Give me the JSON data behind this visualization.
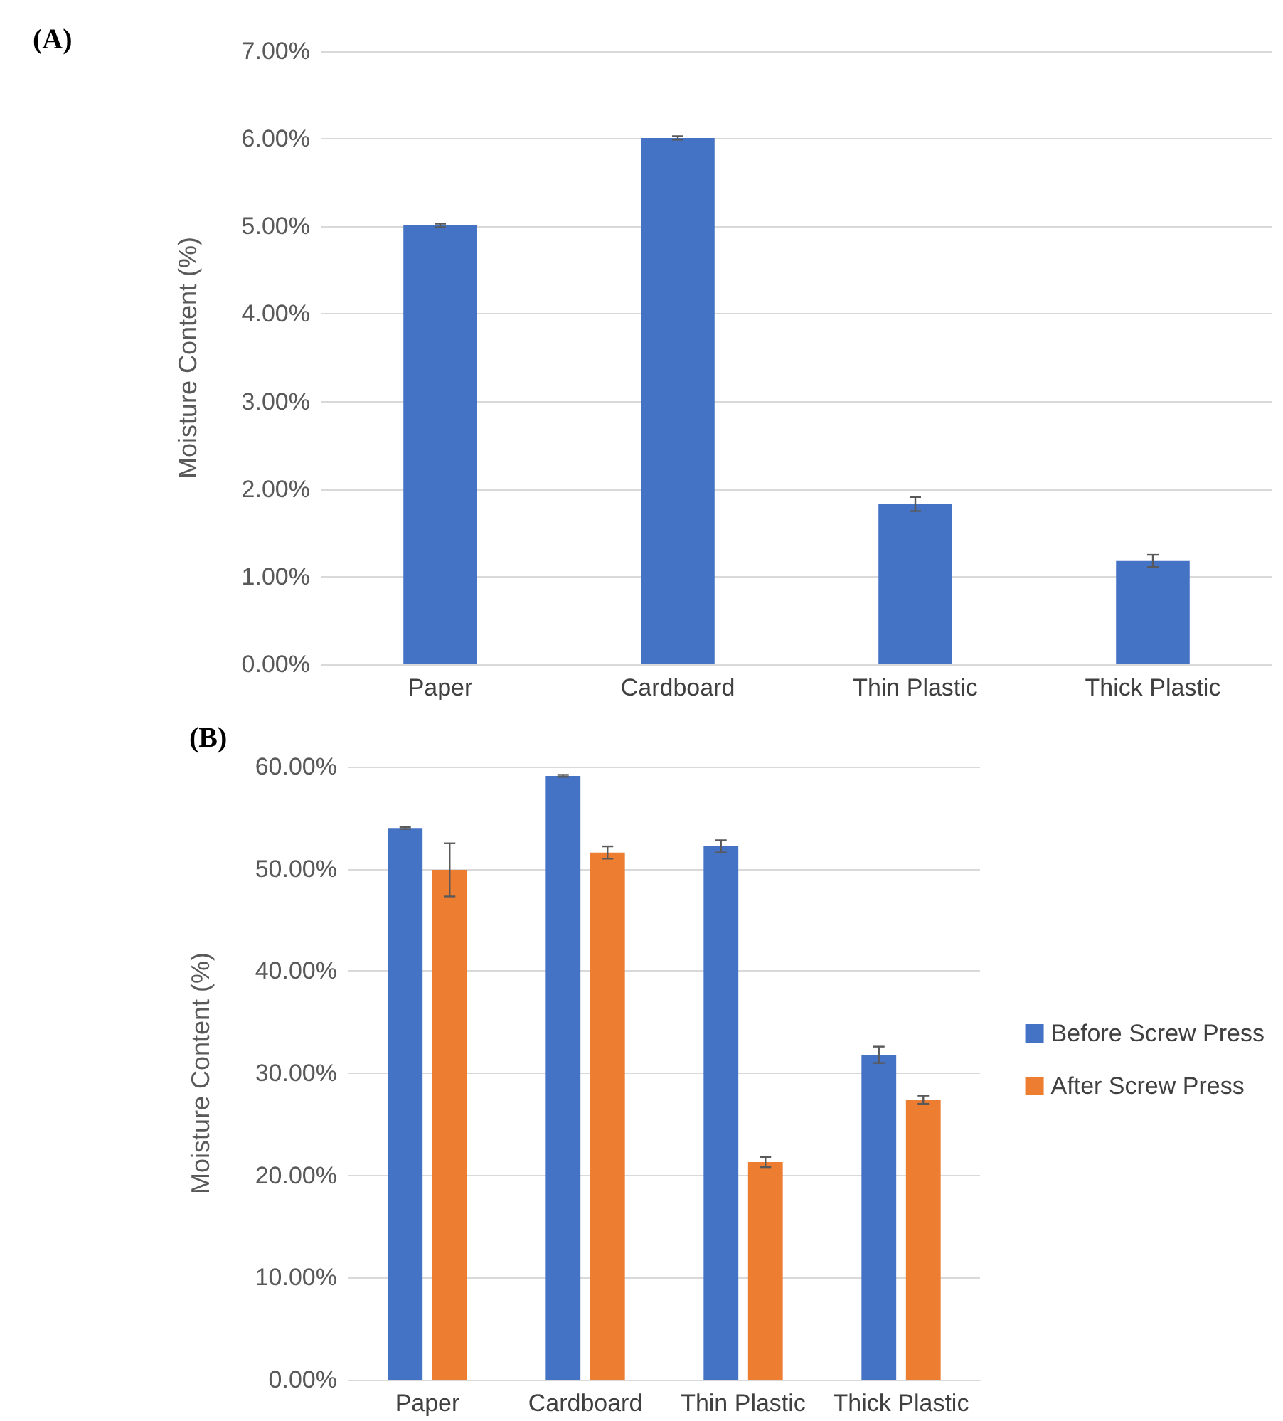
{
  "chart_data": [
    {
      "type": "bar",
      "title": "(A)",
      "ylabel": "Moisture Content (%)",
      "categories": [
        "Paper",
        "Cardboard",
        "Thin Plastic",
        "Thick Plastic"
      ],
      "values": [
        5.01,
        6.01,
        1.83,
        1.18
      ],
      "errors": [
        0.02,
        0.02,
        0.08,
        0.07
      ],
      "color": "#4472c4",
      "ylim": [
        0,
        7
      ],
      "yticks": [
        {
          "value": 0,
          "label": "0.00%"
        },
        {
          "value": 1,
          "label": "1.00%"
        },
        {
          "value": 2,
          "label": "2.00%"
        },
        {
          "value": 3,
          "label": "3.00%"
        },
        {
          "value": 4,
          "label": "4.00%"
        },
        {
          "value": 5,
          "label": "5.00%"
        },
        {
          "value": 6,
          "label": "6.00%"
        },
        {
          "value": 7,
          "label": "7.00%"
        }
      ],
      "grid": "y"
    },
    {
      "type": "bar",
      "title": "(B)",
      "ylabel": "Moisture Content (%)",
      "categories": [
        "Paper",
        "Cardboard",
        "Thin Plastic",
        "Thick Plastic"
      ],
      "series": [
        {
          "name": "Before Screw Press",
          "color": "#4472c4",
          "values": [
            54.0,
            59.1,
            52.2,
            31.8
          ],
          "errors": [
            0.1,
            0.1,
            0.6,
            0.8
          ]
        },
        {
          "name": "After Screw Press",
          "color": "#ed7d31",
          "values": [
            49.9,
            51.6,
            21.3,
            27.4
          ],
          "errors": [
            2.6,
            0.6,
            0.5,
            0.4
          ]
        }
      ],
      "ylim": [
        0,
        60
      ],
      "yticks": [
        {
          "value": 0,
          "label": "0.00%"
        },
        {
          "value": 10,
          "label": "10.00%"
        },
        {
          "value": 20,
          "label": "20.00%"
        },
        {
          "value": 30,
          "label": "30.00%"
        },
        {
          "value": 40,
          "label": "40.00%"
        },
        {
          "value": 50,
          "label": "50.00%"
        },
        {
          "value": 60,
          "label": "60.00%"
        }
      ],
      "grid": "y",
      "legend": "right"
    }
  ]
}
